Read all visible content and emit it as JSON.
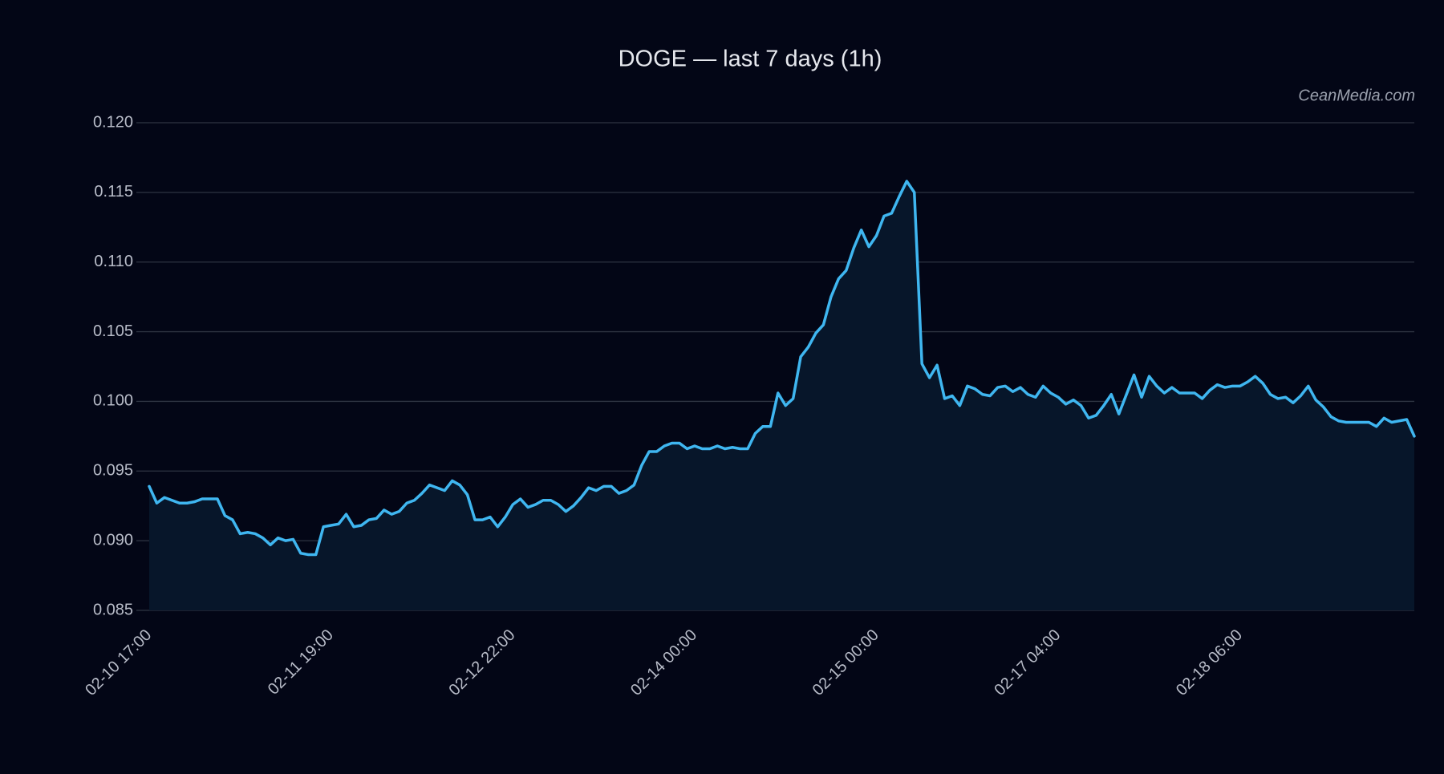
{
  "chart_data": {
    "type": "area",
    "title": "DOGE — last 7 days (1h)",
    "watermark": "CeanMedia.com",
    "categories": [
      "02-10 17:00",
      null,
      null,
      null,
      null,
      null,
      null,
      null,
      null,
      null,
      null,
      null,
      null,
      null,
      null,
      null,
      null,
      null,
      null,
      null,
      null,
      null,
      null,
      null,
      "02-11 19:00",
      null,
      null,
      null,
      null,
      null,
      null,
      null,
      null,
      null,
      null,
      null,
      null,
      null,
      null,
      null,
      null,
      null,
      null,
      null,
      null,
      null,
      null,
      null,
      "02-12 22:00",
      null,
      null,
      null,
      null,
      null,
      null,
      null,
      null,
      null,
      null,
      null,
      null,
      null,
      null,
      null,
      null,
      null,
      null,
      null,
      null,
      null,
      null,
      null,
      "02-14 00:00",
      null,
      null,
      null,
      null,
      null,
      null,
      null,
      null,
      null,
      null,
      null,
      null,
      null,
      null,
      null,
      null,
      null,
      null,
      null,
      null,
      null,
      null,
      null,
      "02-15 00:00",
      null,
      null,
      null,
      null,
      null,
      null,
      null,
      null,
      null,
      null,
      null,
      null,
      null,
      null,
      null,
      null,
      null,
      null,
      null,
      null,
      null,
      null,
      null,
      "02-17 04:00",
      null,
      null,
      null,
      null,
      null,
      null,
      null,
      null,
      null,
      null,
      null,
      null,
      null,
      null,
      null,
      null,
      null,
      null,
      null,
      null,
      null,
      null,
      null,
      "02-18 06:00",
      null,
      null,
      null,
      null,
      null,
      null,
      null,
      null,
      null,
      null,
      null,
      null,
      null,
      null,
      null,
      null,
      null,
      null,
      null,
      null,
      null,
      null,
      null
    ],
    "values": [
      0.0939,
      0.0927,
      0.0931,
      0.0929,
      0.0927,
      0.0927,
      0.0928,
      0.093,
      0.093,
      0.093,
      0.0918,
      0.0915,
      0.0905,
      0.0906,
      0.0905,
      0.0902,
      0.0897,
      0.0902,
      0.09,
      0.0901,
      0.0891,
      0.089,
      0.089,
      0.091,
      0.0911,
      0.0912,
      0.0919,
      0.091,
      0.0911,
      0.0915,
      0.0916,
      0.0922,
      0.0919,
      0.0921,
      0.0927,
      0.0929,
      0.0934,
      0.094,
      0.0938,
      0.0936,
      0.0943,
      0.094,
      0.0933,
      0.0915,
      0.0915,
      0.0917,
      0.091,
      0.0917,
      0.0926,
      0.093,
      0.0924,
      0.0926,
      0.0929,
      0.0929,
      0.0926,
      0.0921,
      0.0925,
      0.0931,
      0.0938,
      0.0936,
      0.0939,
      0.0939,
      0.0934,
      0.0936,
      0.094,
      0.0954,
      0.0964,
      0.0964,
      0.0968,
      0.097,
      0.097,
      0.0966,
      0.0968,
      0.0966,
      0.0966,
      0.0968,
      0.0966,
      0.0967,
      0.0966,
      0.0966,
      0.0977,
      0.0982,
      0.0982,
      0.1006,
      0.0997,
      0.1002,
      0.1032,
      0.1039,
      0.1049,
      0.1055,
      0.1075,
      0.1088,
      0.1094,
      0.111,
      0.1123,
      0.1111,
      0.1119,
      0.1133,
      0.1135,
      0.1147,
      0.1158,
      0.115,
      0.1027,
      0.1017,
      0.1026,
      0.1002,
      0.1004,
      0.0997,
      0.1011,
      0.1009,
      0.1005,
      0.1004,
      0.101,
      0.1011,
      0.1007,
      0.101,
      0.1005,
      0.1003,
      0.1011,
      0.1006,
      0.1003,
      0.0998,
      0.1001,
      0.0997,
      0.0988,
      0.099,
      0.0997,
      0.1005,
      0.0991,
      0.1005,
      0.1019,
      0.1003,
      0.1018,
      0.1011,
      0.1006,
      0.101,
      0.1006,
      0.1006,
      0.1006,
      0.1002,
      0.1008,
      0.1012,
      0.101,
      0.1011,
      0.1011,
      0.1014,
      0.1018,
      0.1013,
      0.1005,
      0.1002,
      0.1003,
      0.0999,
      0.1004,
      0.1011,
      0.1001,
      0.0996,
      0.0989,
      0.0986,
      0.0985,
      0.0985,
      0.0985,
      0.0985,
      0.0982,
      0.0988,
      0.0985,
      0.0986,
      0.0987,
      0.0975
    ],
    "color": "#3fb6f0",
    "fill": "#07162a",
    "ylim": [
      0.085,
      0.12
    ],
    "yticks": [
      0.085,
      {
        "value": 0.09,
        "label": "0.090"
      },
      0.095,
      {
        "value": 0.1,
        "label": "0.100"
      },
      0.105,
      {
        "value": 0.11,
        "label": "0.110"
      },
      0.115,
      {
        "value": 0.12,
        "label": "0.120"
      }
    ],
    "grid": true
  }
}
